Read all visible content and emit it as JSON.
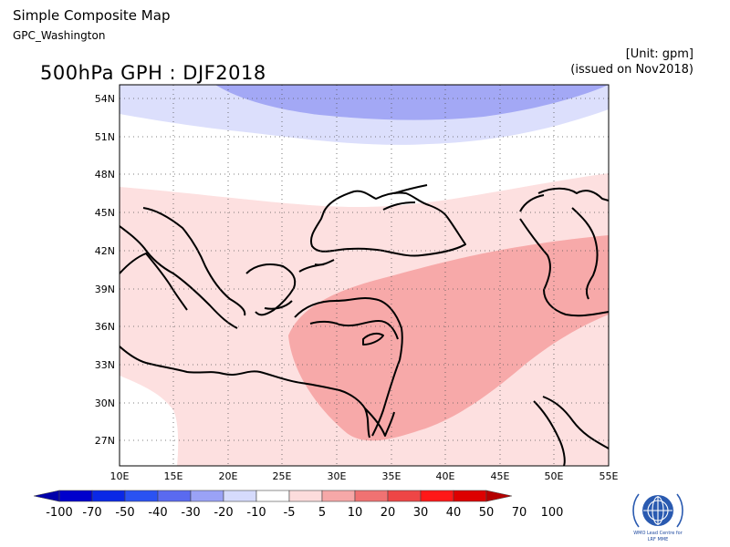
{
  "header": {
    "app_title": "Simple Composite Map",
    "subtitle": "GPC_Washington",
    "map_title": "500hPa GPH : DJF2018",
    "unit": "[Unit: gpm]",
    "issued": "(issued on Nov2018)"
  },
  "map": {
    "lon_ticks": [
      "10E",
      "15E",
      "20E",
      "25E",
      "30E",
      "35E",
      "40E",
      "45E",
      "50E",
      "55E"
    ],
    "lat_ticks": [
      "54N",
      "51N",
      "48N",
      "45N",
      "42N",
      "39N",
      "36N",
      "33N",
      "30N",
      "27N"
    ],
    "lon_range": [
      10,
      55
    ],
    "lat_range": [
      25,
      55
    ],
    "grid": "dotted",
    "field": "500hPa geopotential height anomaly composite"
  },
  "colorbar": {
    "labels": [
      "-100",
      "-70",
      "-50",
      "-40",
      "-30",
      "-20",
      "-10",
      "-5",
      "5",
      "10",
      "20",
      "30",
      "40",
      "50",
      "70",
      "100"
    ],
    "colors": [
      "#0000aa",
      "#0000cc",
      "#0a28e6",
      "#2a52f2",
      "#5a6af0",
      "#9aa2f6",
      "#d6dbfc",
      "#ffffff",
      "#fcdcdc",
      "#f6a8a8",
      "#f07272",
      "#ee4646",
      "#ff1818",
      "#dd0000",
      "#b40000"
    ]
  },
  "logo": {
    "line1": "WMO Lead Centre for",
    "line2": "LRF MME"
  }
}
